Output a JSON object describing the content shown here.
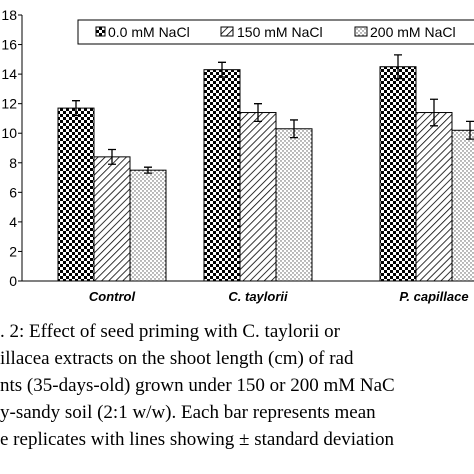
{
  "chart_data": {
    "type": "bar",
    "categories": [
      "Control",
      "C. taylorii",
      "P. capillace"
    ],
    "series": [
      {
        "name": "0.0 mM NaCl",
        "values": [
          11.7,
          14.3,
          14.5
        ],
        "errors": [
          0.5,
          0.5,
          0.8
        ],
        "pattern": "checker"
      },
      {
        "name": "150 mM NaCl",
        "values": [
          8.4,
          11.4,
          11.4
        ],
        "errors": [
          0.5,
          0.6,
          0.9
        ],
        "pattern": "hatch"
      },
      {
        "name": "200 mM NaCl",
        "values": [
          7.5,
          10.3,
          10.2
        ],
        "errors": [
          0.2,
          0.6,
          0.6
        ],
        "pattern": "dots"
      }
    ],
    "y_ticks": [
      "0",
      "2",
      "4",
      "6",
      "8",
      "10",
      "12",
      "14",
      "16",
      "18"
    ],
    "ylim": [
      0,
      18
    ],
    "legend_position": "top",
    "grid": false
  },
  "caption_lines": [
    ". 2: Effect of seed priming with C. taylorii or",
    "illacea extracts on the shoot length (cm) of rad",
    "nts (35-days-old) grown under 150 or 200 mM NaC",
    "y-sandy soil (2:1 w/w). Each bar represents mean",
    "e replicates with lines showing ± standard deviation"
  ]
}
